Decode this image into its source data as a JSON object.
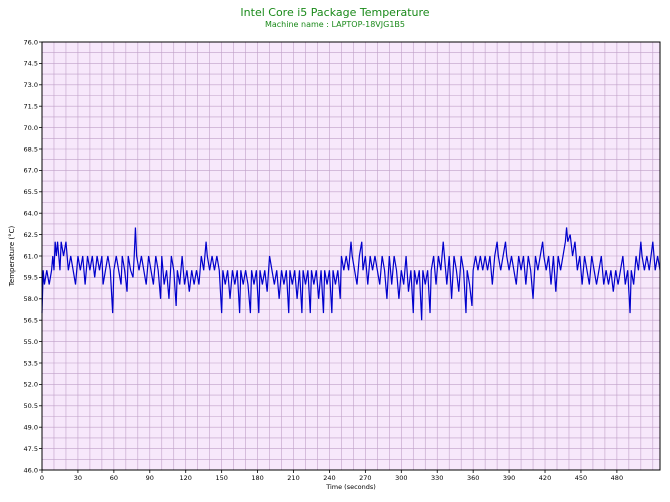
{
  "chart_data": {
    "type": "line",
    "title": "Intel Core i5 Package Temperature",
    "subtitle": "Machine name : LAPTOP-18VJG1B5",
    "xlabel": "Time (seconds)",
    "ylabel": "Temperature (°C)",
    "xlim": [
      0,
      516
    ],
    "ylim": [
      46.0,
      76.0
    ],
    "xticks": [
      0,
      30,
      60,
      90,
      120,
      150,
      180,
      210,
      240,
      270,
      300,
      330,
      360,
      390,
      420,
      450,
      480
    ],
    "yticks": [
      46.0,
      47.5,
      49.0,
      50.5,
      52.0,
      53.5,
      55.0,
      56.5,
      58.0,
      59.5,
      61.0,
      62.5,
      64.0,
      65.5,
      67.0,
      68.5,
      70.0,
      71.5,
      73.0,
      74.5,
      76.0
    ],
    "grid": true,
    "colors": {
      "line": "#0000cc",
      "plot_bg": "#f7e8fb",
      "grid": "#c0a0c8",
      "title": "#1a8a1a"
    },
    "series": [
      {
        "points": [
          [
            0,
            57.0
          ],
          [
            1,
            60.0
          ],
          [
            2,
            59.0
          ],
          [
            4,
            60.0
          ],
          [
            6,
            59.0
          ],
          [
            8,
            60.0
          ],
          [
            9,
            61.0
          ],
          [
            10,
            60.0
          ],
          [
            11,
            62.0
          ],
          [
            12,
            61.0
          ],
          [
            13,
            62.0
          ],
          [
            15,
            60.0
          ],
          [
            16,
            62.0
          ],
          [
            18,
            61.0
          ],
          [
            20,
            62.0
          ],
          [
            21,
            61.0
          ],
          [
            22,
            60.0
          ],
          [
            24,
            61.0
          ],
          [
            26,
            60.0
          ],
          [
            28,
            59.0
          ],
          [
            30,
            61.0
          ],
          [
            32,
            60.0
          ],
          [
            34,
            61.0
          ],
          [
            36,
            59.0
          ],
          [
            38,
            61.0
          ],
          [
            40,
            60.0
          ],
          [
            42,
            61.0
          ],
          [
            44,
            59.5
          ],
          [
            46,
            61.0
          ],
          [
            48,
            60.0
          ],
          [
            50,
            61.0
          ],
          [
            51,
            59.0
          ],
          [
            53,
            60.0
          ],
          [
            55,
            61.0
          ],
          [
            57,
            60.0
          ],
          [
            59,
            57.0
          ],
          [
            60,
            60.0
          ],
          [
            62,
            61.0
          ],
          [
            64,
            60.0
          ],
          [
            66,
            59.0
          ],
          [
            67,
            61.0
          ],
          [
            69,
            60.0
          ],
          [
            71,
            58.5
          ],
          [
            72,
            61.0
          ],
          [
            74,
            60.0
          ],
          [
            76,
            59.5
          ],
          [
            77,
            61.0
          ],
          [
            78,
            63.0
          ],
          [
            79,
            61.0
          ],
          [
            81,
            60.0
          ],
          [
            83,
            61.0
          ],
          [
            85,
            60.0
          ],
          [
            87,
            59.0
          ],
          [
            89,
            61.0
          ],
          [
            91,
            60.0
          ],
          [
            93,
            59.0
          ],
          [
            95,
            61.0
          ],
          [
            97,
            60.0
          ],
          [
            99,
            58.0
          ],
          [
            100,
            61.0
          ],
          [
            102,
            59.0
          ],
          [
            104,
            60.0
          ],
          [
            106,
            58.0
          ],
          [
            108,
            61.0
          ],
          [
            110,
            60.0
          ],
          [
            112,
            57.5
          ],
          [
            113,
            60.0
          ],
          [
            115,
            59.0
          ],
          [
            117,
            61.0
          ],
          [
            119,
            59.0
          ],
          [
            121,
            60.0
          ],
          [
            123,
            58.5
          ],
          [
            125,
            60.0
          ],
          [
            127,
            59.0
          ],
          [
            129,
            60.0
          ],
          [
            131,
            59.0
          ],
          [
            133,
            61.0
          ],
          [
            135,
            60.0
          ],
          [
            137,
            62.0
          ],
          [
            138,
            61.0
          ],
          [
            140,
            60.0
          ],
          [
            142,
            61.0
          ],
          [
            144,
            60.0
          ],
          [
            146,
            61.0
          ],
          [
            148,
            60.0
          ],
          [
            150,
            57.0
          ],
          [
            151,
            60.0
          ],
          [
            153,
            59.0
          ],
          [
            155,
            60.0
          ],
          [
            157,
            58.0
          ],
          [
            159,
            60.0
          ],
          [
            161,
            59.0
          ],
          [
            163,
            60.0
          ],
          [
            165,
            57.0
          ],
          [
            166,
            60.0
          ],
          [
            168,
            59.0
          ],
          [
            170,
            60.0
          ],
          [
            172,
            59.0
          ],
          [
            174,
            57.0
          ],
          [
            175,
            60.0
          ],
          [
            177,
            59.0
          ],
          [
            179,
            60.0
          ],
          [
            181,
            57.0
          ],
          [
            182,
            60.0
          ],
          [
            184,
            59.0
          ],
          [
            186,
            60.0
          ],
          [
            188,
            58.5
          ],
          [
            190,
            61.0
          ],
          [
            192,
            60.0
          ],
          [
            194,
            59.0
          ],
          [
            196,
            60.0
          ],
          [
            198,
            58.0
          ],
          [
            200,
            60.0
          ],
          [
            202,
            59.0
          ],
          [
            204,
            60.0
          ],
          [
            206,
            57.0
          ],
          [
            207,
            60.0
          ],
          [
            209,
            59.0
          ],
          [
            211,
            60.0
          ],
          [
            213,
            58.0
          ],
          [
            215,
            60.0
          ],
          [
            217,
            57.0
          ],
          [
            218,
            60.0
          ],
          [
            220,
            59.0
          ],
          [
            222,
            60.0
          ],
          [
            224,
            57.0
          ],
          [
            225,
            60.0
          ],
          [
            227,
            59.0
          ],
          [
            229,
            60.0
          ],
          [
            231,
            58.0
          ],
          [
            233,
            60.0
          ],
          [
            235,
            57.0
          ],
          [
            236,
            60.0
          ],
          [
            238,
            59.0
          ],
          [
            240,
            60.0
          ],
          [
            242,
            57.0
          ],
          [
            243,
            60.0
          ],
          [
            245,
            59.0
          ],
          [
            247,
            60.0
          ],
          [
            249,
            58.0
          ],
          [
            250,
            61.0
          ],
          [
            252,
            60.0
          ],
          [
            254,
            61.0
          ],
          [
            256,
            60.0
          ],
          [
            258,
            62.0
          ],
          [
            259,
            61.0
          ],
          [
            261,
            60.0
          ],
          [
            263,
            59.0
          ],
          [
            265,
            61.0
          ],
          [
            267,
            62.0
          ],
          [
            268,
            60.0
          ],
          [
            270,
            61.0
          ],
          [
            272,
            59.0
          ],
          [
            274,
            61.0
          ],
          [
            276,
            60.0
          ],
          [
            278,
            61.0
          ],
          [
            280,
            60.0
          ],
          [
            282,
            59.0
          ],
          [
            284,
            61.0
          ],
          [
            286,
            60.0
          ],
          [
            288,
            58.0
          ],
          [
            290,
            61.0
          ],
          [
            292,
            59.0
          ],
          [
            294,
            61.0
          ],
          [
            296,
            60.0
          ],
          [
            298,
            58.0
          ],
          [
            300,
            60.0
          ],
          [
            302,
            59.0
          ],
          [
            304,
            61.0
          ],
          [
            306,
            58.5
          ],
          [
            308,
            60.0
          ],
          [
            310,
            57.0
          ],
          [
            311,
            60.0
          ],
          [
            313,
            59.0
          ],
          [
            315,
            60.0
          ],
          [
            317,
            56.5
          ],
          [
            318,
            60.0
          ],
          [
            320,
            59.0
          ],
          [
            322,
            60.0
          ],
          [
            324,
            57.0
          ],
          [
            325,
            60.0
          ],
          [
            327,
            61.0
          ],
          [
            329,
            59.0
          ],
          [
            331,
            61.0
          ],
          [
            333,
            60.0
          ],
          [
            335,
            62.0
          ],
          [
            336,
            61.0
          ],
          [
            338,
            59.0
          ],
          [
            340,
            61.0
          ],
          [
            342,
            58.0
          ],
          [
            344,
            61.0
          ],
          [
            346,
            60.0
          ],
          [
            348,
            58.5
          ],
          [
            350,
            61.0
          ],
          [
            352,
            60.0
          ],
          [
            354,
            57.0
          ],
          [
            355,
            60.0
          ],
          [
            357,
            59.0
          ],
          [
            359,
            57.5
          ],
          [
            360,
            60.0
          ],
          [
            362,
            61.0
          ],
          [
            364,
            60.0
          ],
          [
            366,
            61.0
          ],
          [
            368,
            60.0
          ],
          [
            370,
            61.0
          ],
          [
            372,
            60.0
          ],
          [
            374,
            61.0
          ],
          [
            376,
            59.0
          ],
          [
            378,
            61.0
          ],
          [
            380,
            62.0
          ],
          [
            381,
            61.0
          ],
          [
            383,
            60.0
          ],
          [
            385,
            61.0
          ],
          [
            387,
            62.0
          ],
          [
            388,
            61.0
          ],
          [
            390,
            60.0
          ],
          [
            392,
            61.0
          ],
          [
            394,
            60.0
          ],
          [
            396,
            59.0
          ],
          [
            398,
            61.0
          ],
          [
            400,
            60.0
          ],
          [
            402,
            61.0
          ],
          [
            404,
            59.0
          ],
          [
            406,
            61.0
          ],
          [
            408,
            60.0
          ],
          [
            410,
            58.0
          ],
          [
            412,
            61.0
          ],
          [
            414,
            60.0
          ],
          [
            416,
            61.0
          ],
          [
            418,
            62.0
          ],
          [
            419,
            61.0
          ],
          [
            421,
            60.0
          ],
          [
            423,
            61.0
          ],
          [
            425,
            59.0
          ],
          [
            427,
            61.0
          ],
          [
            429,
            58.5
          ],
          [
            431,
            61.0
          ],
          [
            433,
            60.0
          ],
          [
            435,
            61.0
          ],
          [
            437,
            62.0
          ],
          [
            438,
            63.0
          ],
          [
            439,
            62.0
          ],
          [
            441,
            62.5
          ],
          [
            443,
            61.0
          ],
          [
            445,
            62.0
          ],
          [
            447,
            60.0
          ],
          [
            449,
            61.0
          ],
          [
            451,
            59.0
          ],
          [
            453,
            61.0
          ],
          [
            455,
            60.0
          ],
          [
            457,
            59.0
          ],
          [
            459,
            61.0
          ],
          [
            461,
            60.0
          ],
          [
            463,
            59.0
          ],
          [
            465,
            60.0
          ],
          [
            467,
            61.0
          ],
          [
            469,
            59.0
          ],
          [
            471,
            60.0
          ],
          [
            473,
            59.0
          ],
          [
            475,
            60.0
          ],
          [
            477,
            58.5
          ],
          [
            479,
            60.0
          ],
          [
            481,
            59.0
          ],
          [
            483,
            60.0
          ],
          [
            485,
            61.0
          ],
          [
            487,
            59.0
          ],
          [
            489,
            60.0
          ],
          [
            491,
            57.0
          ],
          [
            492,
            60.0
          ],
          [
            494,
            59.0
          ],
          [
            496,
            61.0
          ],
          [
            498,
            60.0
          ],
          [
            500,
            62.0
          ],
          [
            501,
            61.0
          ],
          [
            503,
            60.0
          ],
          [
            505,
            61.0
          ],
          [
            507,
            60.0
          ],
          [
            510,
            62.0
          ],
          [
            512,
            60.0
          ],
          [
            514,
            61.0
          ],
          [
            516,
            60.0
          ]
        ]
      }
    ]
  }
}
